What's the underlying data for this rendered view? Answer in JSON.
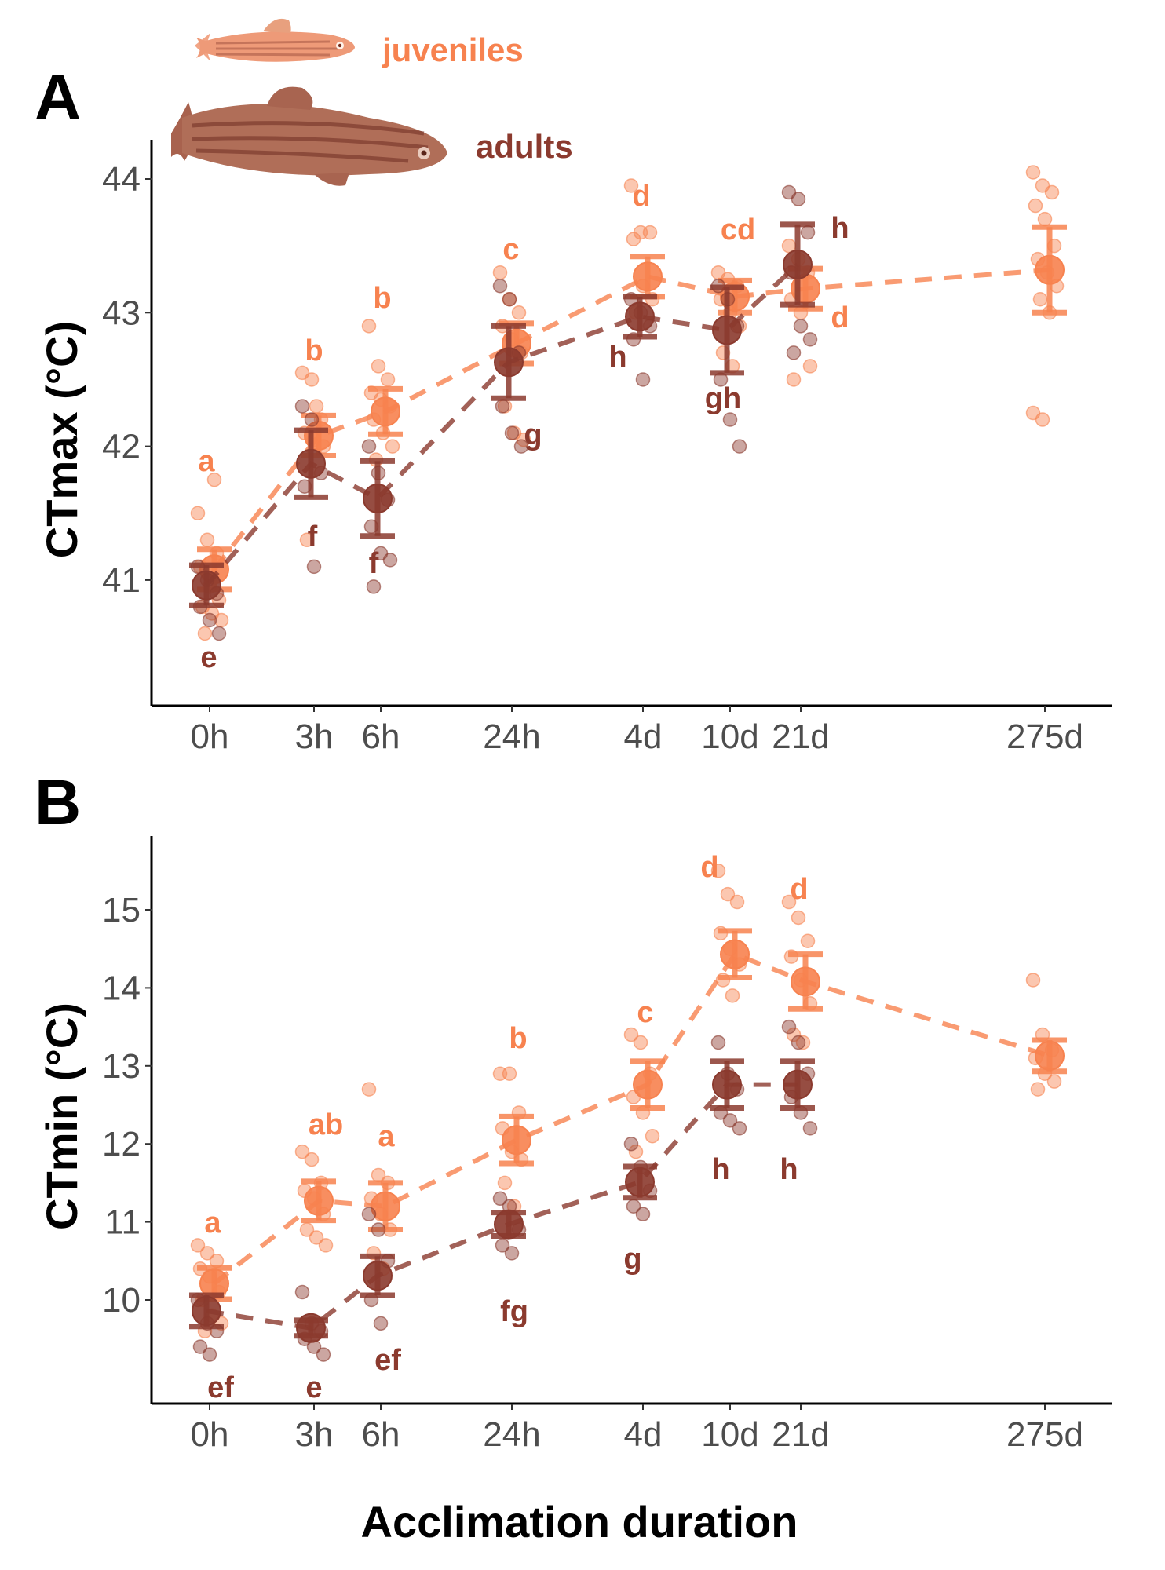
{
  "figure": {
    "panel_a_letter": "A",
    "panel_b_letter": "B",
    "xlabel": "Acclimation duration",
    "legend": [
      {
        "label": "juveniles",
        "color": "#F7824F",
        "icon": "juvenile-zebrafish-illustration"
      },
      {
        "label": "adults",
        "color": "#8B3A2E",
        "icon": "adult-zebrafish-illustration"
      }
    ]
  },
  "chart_data": [
    {
      "type": "scatter",
      "panel": "A",
      "title": "",
      "xlabel": "",
      "ylabel": "CTmax (°C)",
      "categories": [
        "0h",
        "3h",
        "6h",
        "24h",
        "4d",
        "10d",
        "21d",
        "275d"
      ],
      "x_positions_hours_log_like": [
        0,
        3,
        6,
        24,
        96,
        240,
        504,
        6600
      ],
      "ylim": [
        40.1,
        44.3
      ],
      "yticks": [
        41,
        42,
        43,
        44
      ],
      "grid": false,
      "series": [
        {
          "name": "juveniles",
          "color": "#F7824F",
          "means": [
            41.08,
            42.08,
            42.26,
            42.77,
            43.27,
            43.12,
            43.18,
            43.32
          ],
          "se": [
            0.15,
            0.15,
            0.17,
            0.15,
            0.15,
            0.12,
            0.15,
            0.32
          ],
          "letters": [
            "a",
            "b",
            "b",
            "c",
            "d",
            "cd",
            "d",
            ""
          ],
          "letter_pos": [
            "above",
            "above",
            "above",
            "above",
            "above",
            "above",
            "below-right",
            ""
          ],
          "points": [
            [
              41.5,
              41.3,
              41.2,
              41.1,
              40.95,
              40.85,
              40.8,
              40.75,
              40.7,
              40.6,
              41.75
            ],
            [
              42.55,
              42.5,
              42.2,
              42.1,
              42.05,
              42.0,
              41.3,
              42.3
            ],
            [
              42.9,
              42.6,
              42.5,
              42.4,
              42.35,
              42.3,
              42.2,
              42.1,
              42.0,
              41.9
            ],
            [
              43.3,
              43.1,
              43.0,
              42.9,
              42.8,
              42.7,
              42.3,
              42.1,
              42.05
            ],
            [
              43.95,
              43.6,
              43.6,
              43.55,
              43.2,
              43.1,
              43.0
            ],
            [
              43.3,
              43.25,
              43.2,
              43.1,
              43.0,
              42.9,
              42.7,
              42.6
            ],
            [
              43.5,
              43.4,
              43.3,
              43.1,
              43.0,
              42.6,
              42.5
            ],
            [
              44.05,
              43.95,
              43.9,
              43.8,
              43.7,
              43.5,
              43.4,
              43.3,
              43.2,
              43.1,
              43.0,
              42.25,
              42.2
            ]
          ]
        },
        {
          "name": "adults",
          "color": "#8B3A2E",
          "means": [
            40.96,
            41.87,
            41.61,
            42.63,
            42.97,
            42.87,
            43.36
          ],
          "se": [
            0.15,
            0.25,
            0.28,
            0.27,
            0.15,
            0.32,
            0.3
          ],
          "letters": [
            "e",
            "f",
            "f",
            "g",
            "h",
            "gh",
            "h"
          ],
          "letter_pos": [
            "below",
            "below",
            "below",
            "below-right",
            "below-left",
            "below",
            "right"
          ],
          "points": [
            [
              41.1,
              41.0,
              40.9,
              40.8,
              40.7,
              40.6
            ],
            [
              42.3,
              42.2,
              41.8,
              41.7,
              41.1
            ],
            [
              42.0,
              41.8,
              41.6,
              41.4,
              41.2,
              41.15,
              40.95
            ],
            [
              43.2,
              43.1,
              42.7,
              42.3,
              42.1,
              42.0
            ],
            [
              43.1,
              43.0,
              42.9,
              42.8,
              42.5
            ],
            [
              43.2,
              43.1,
              42.9,
              42.5,
              42.2,
              42.0
            ],
            [
              43.9,
              43.85,
              43.6,
              43.3,
              42.9,
              42.8,
              42.7
            ]
          ]
        }
      ]
    },
    {
      "type": "scatter",
      "panel": "B",
      "title": "",
      "xlabel": "Acclimation duration",
      "ylabel": "CTmin (°C)",
      "categories": [
        "0h",
        "3h",
        "6h",
        "24h",
        "4d",
        "10d",
        "21d",
        "275d"
      ],
      "ylim": [
        8.7,
        15.9
      ],
      "yticks": [
        10,
        11,
        12,
        13,
        14,
        15
      ],
      "grid": false,
      "series": [
        {
          "name": "juveniles",
          "color": "#F7824F",
          "means": [
            10.21,
            11.27,
            11.2,
            12.05,
            12.76,
            14.43,
            14.08,
            13.13
          ],
          "se": [
            0.2,
            0.25,
            0.3,
            0.3,
            0.3,
            0.3,
            0.35,
            0.2
          ],
          "letters": [
            "a",
            "ab",
            "a",
            "b",
            "c",
            "d",
            "d",
            ""
          ],
          "points": [
            [
              10.7,
              10.6,
              10.5,
              10.4,
              10.3,
              10.1,
              10.0,
              9.8,
              9.7,
              9.6
            ],
            [
              11.9,
              11.8,
              11.5,
              11.4,
              11.3,
              11.1,
              10.9,
              10.8,
              10.7
            ],
            [
              12.7,
              11.6,
              11.5,
              11.3,
              11.1,
              10.9,
              10.6,
              10.4
            ],
            [
              12.9,
              12.9,
              12.4,
              12.2,
              11.9,
              11.8,
              11.5,
              11.2
            ],
            [
              13.4,
              13.3,
              12.9,
              12.6,
              12.4,
              12.1,
              11.9
            ],
            [
              15.5,
              15.2,
              15.1,
              14.7,
              14.5,
              14.3,
              14.1,
              13.9
            ],
            [
              15.1,
              14.9,
              14.6,
              14.4,
              14.1,
              13.8,
              13.4,
              13.3
            ],
            [
              14.1,
              13.4,
              13.2,
              13.1,
              12.9,
              12.8,
              12.7
            ]
          ]
        },
        {
          "name": "adults",
          "color": "#8B3A2E",
          "means": [
            9.86,
            9.64,
            10.31,
            10.97,
            11.51,
            12.76,
            12.76
          ],
          "se": [
            0.2,
            0.1,
            0.25,
            0.15,
            0.2,
            0.3,
            0.3
          ],
          "letters": [
            "ef",
            "e",
            "ef",
            "fg",
            "g",
            "h",
            "h"
          ],
          "points": [
            [
              10.0,
              9.7,
              9.6,
              9.4,
              9.3
            ],
            [
              10.1,
              9.7,
              9.6,
              9.5,
              9.4,
              9.3
            ],
            [
              11.1,
              10.9,
              10.5,
              10.0,
              9.7
            ],
            [
              11.3,
              11.2,
              10.9,
              10.7,
              10.6
            ],
            [
              12.0,
              11.7,
              11.4,
              11.2,
              11.1
            ],
            [
              13.3,
              12.9,
              12.7,
              12.4,
              12.3,
              12.2
            ],
            [
              13.5,
              13.3,
              12.9,
              12.6,
              12.4,
              12.2
            ]
          ]
        }
      ]
    }
  ]
}
